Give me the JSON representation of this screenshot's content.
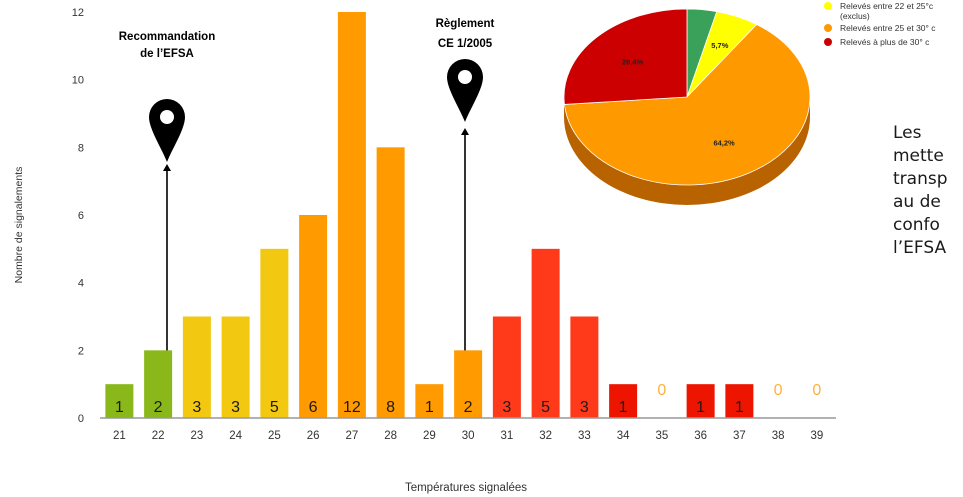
{
  "chart_data": [
    {
      "type": "bar",
      "xlabel": "Températures signalées",
      "ylabel": "Nombre de signalements",
      "ylim": [
        0,
        12
      ],
      "yticks": [
        0,
        2,
        4,
        6,
        8,
        10,
        12
      ],
      "grid": false,
      "categories": [
        "21",
        "22",
        "23",
        "24",
        "25",
        "26",
        "27",
        "28",
        "29",
        "30",
        "31",
        "32",
        "33",
        "34",
        "35",
        "36",
        "37",
        "38",
        "39"
      ],
      "values": [
        1,
        2,
        3,
        3,
        5,
        6,
        12,
        8,
        1,
        2,
        3,
        5,
        3,
        1,
        0,
        1,
        1,
        0,
        0
      ],
      "bar_colors": [
        "#8ab81a",
        "#8ab81a",
        "#f2c811",
        "#f2c811",
        "#f2c811",
        "#ff9a00",
        "#ff9a00",
        "#ff9a00",
        "#ff9a00",
        "#ff9a00",
        "#ff3a1a",
        "#ff3a1a",
        "#ff3a1a",
        "#ee1500",
        "#ee1500",
        "#ee1500",
        "#ee1500",
        "#ee1500",
        "#ee1500"
      ],
      "zero_label_color": "#ffb13a",
      "label_color": "#1a1a1a",
      "annotations": [
        {
          "text": "Recommandation\nde l’EFSA",
          "category": "22"
        },
        {
          "text": "Règlement\nCE 1/2005",
          "category": "30"
        }
      ]
    },
    {
      "type": "pie",
      "slices": [
        {
          "name": "",
          "value": 3.9,
          "label": "",
          "color": "#3aa15a"
        },
        {
          "name": "Relevés entre 22 et 25°c\n(exclus)",
          "value": 5.7,
          "label": "5,7%",
          "color": "#ffff00"
        },
        {
          "name": "Relevés entre 25 et 30° c",
          "value": 64.2,
          "label": "64,2%",
          "color": "#ff9900"
        },
        {
          "name": "Relevés à plus de 30° c",
          "value": 26.4,
          "label": "26,4%",
          "color": "#cc0000"
        }
      ],
      "side_color": "#b86200"
    }
  ],
  "side_text": [
    "Les",
    "mette",
    "transp",
    "au de",
    "confo",
    "l’EFSA"
  ],
  "colors": {
    "axis": "#999999",
    "tick_text": "#333333",
    "pin": "#000000"
  }
}
